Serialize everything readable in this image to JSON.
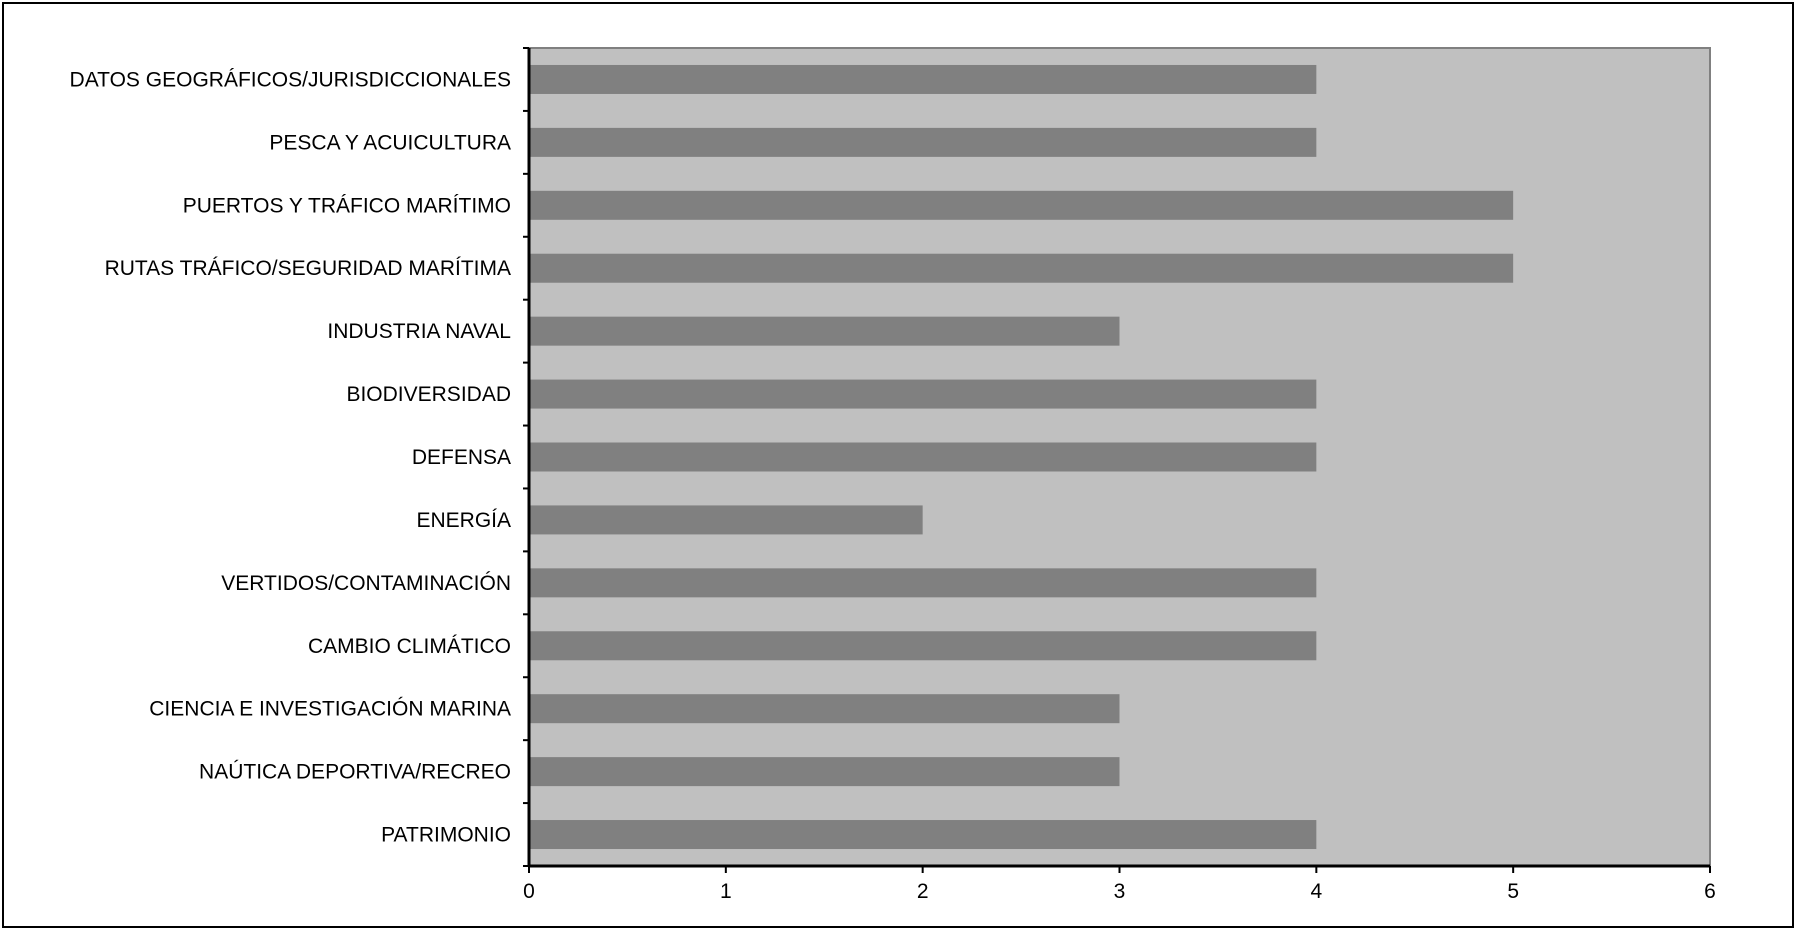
{
  "chart_data": {
    "type": "bar",
    "orientation": "horizontal",
    "categories": [
      "DATOS GEOGRÁFICOS/JURISDICCIONALES",
      "PESCA Y ACUICULTURA",
      "PUERTOS Y TRÁFICO MARÍTIMO",
      "RUTAS TRÁFICO/SEGURIDAD MARÍTIMA",
      "INDUSTRIA NAVAL",
      "BIODIVERSIDAD",
      "DEFENSA",
      "ENERGÍA",
      "VERTIDOS/CONTAMINACIÓN",
      "CAMBIO CLIMÁTICO",
      "CIENCIA E INVESTIGACIÓN MARINA",
      "NAÚTICA DEPORTIVA/RECREO",
      "PATRIMONIO"
    ],
    "values": [
      4,
      4,
      5,
      5,
      3,
      4,
      4,
      2,
      4,
      4,
      3,
      3,
      4
    ],
    "xlim": [
      0,
      6
    ],
    "x_ticks": [
      "0",
      "1",
      "2",
      "3",
      "4",
      "5",
      "6"
    ],
    "grid": false,
    "legend": "none",
    "colors": {
      "plot_background": "#c0c0c0",
      "bar": "#808080",
      "axis": "#000000",
      "frame": "#000000"
    }
  }
}
